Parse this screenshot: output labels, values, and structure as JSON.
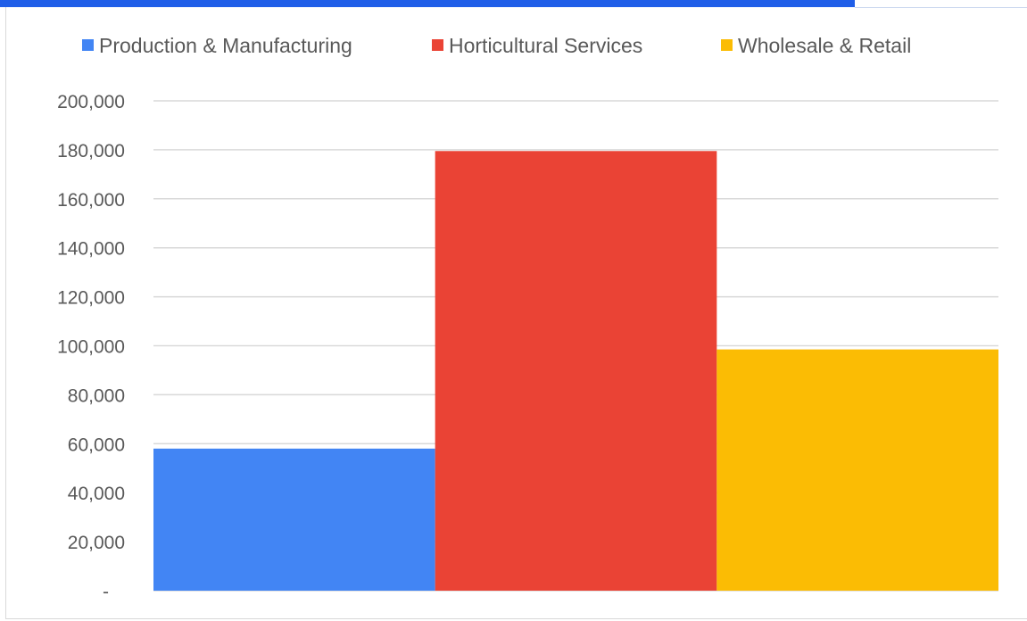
{
  "colors": {
    "production": "#4285f4",
    "horticultural": "#ea4335",
    "wholesale": "#fbbc04",
    "grid": "#d9d9d9",
    "text": "#595959",
    "top_bar": "#1f5ee8"
  },
  "chart_data": {
    "type": "bar",
    "title": "",
    "xlabel": "",
    "ylabel": "",
    "ylim": [
      0,
      200000
    ],
    "grid": true,
    "legend_position": "top",
    "y_ticks": [
      {
        "value": 0,
        "label": "-"
      },
      {
        "value": 20000,
        "label": "20,000"
      },
      {
        "value": 40000,
        "label": "40,000"
      },
      {
        "value": 60000,
        "label": "60,000"
      },
      {
        "value": 80000,
        "label": "80,000"
      },
      {
        "value": 100000,
        "label": "100,000"
      },
      {
        "value": 120000,
        "label": "120,000"
      },
      {
        "value": 140000,
        "label": "140,000"
      },
      {
        "value": 160000,
        "label": "160,000"
      },
      {
        "value": 180000,
        "label": "180,000"
      },
      {
        "value": 200000,
        "label": "200,000"
      }
    ],
    "series": [
      {
        "name": "Production & Manufacturing",
        "value": 58000,
        "color": "#4285f4"
      },
      {
        "name": "Horticultural Services",
        "value": 179500,
        "color": "#ea4335"
      },
      {
        "name": "Wholesale & Retail",
        "value": 98500,
        "color": "#fbbc04"
      }
    ]
  }
}
